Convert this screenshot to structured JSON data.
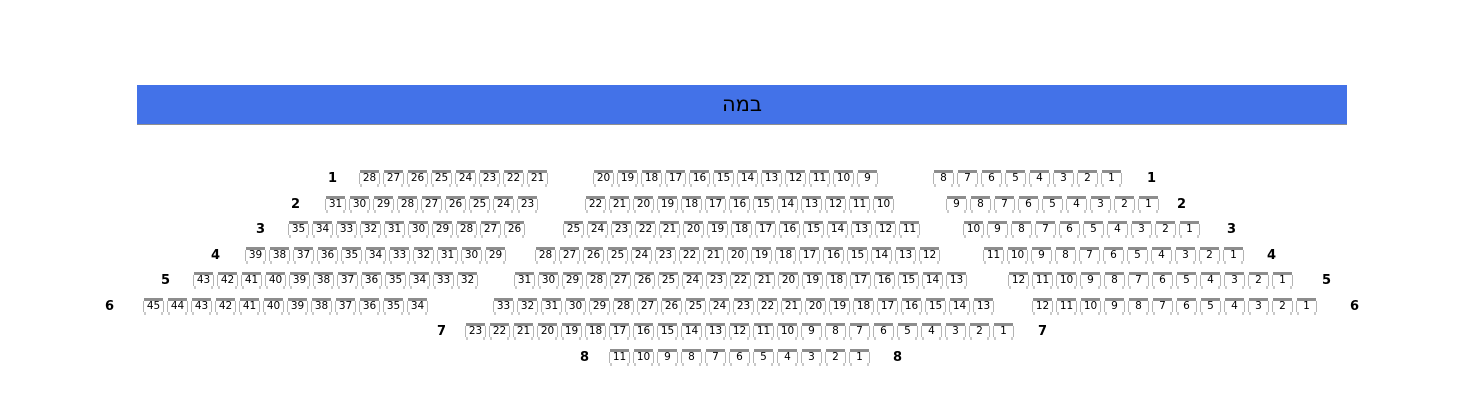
{
  "stage": {
    "label": "במה",
    "color": "#4372e8"
  },
  "rows": [
    {
      "label": "1",
      "groups": [
        [
          28,
          27,
          26,
          25,
          24,
          23,
          22,
          21
        ],
        [
          20,
          19,
          18,
          17,
          16,
          15,
          14,
          13,
          12,
          11,
          10,
          9
        ],
        [
          8,
          7,
          6,
          5,
          4,
          3,
          2,
          1
        ]
      ]
    },
    {
      "label": "2",
      "groups": [
        [
          31,
          30,
          29,
          28,
          27,
          26,
          25,
          24,
          23
        ],
        [
          22,
          21,
          20,
          19,
          18,
          17,
          16,
          15,
          14,
          13,
          12,
          11,
          10
        ],
        [
          9,
          8,
          7,
          6,
          5,
          4,
          3,
          2,
          1
        ]
      ]
    },
    {
      "label": "3",
      "groups": [
        [
          35,
          34,
          33,
          32,
          31,
          30,
          29,
          28,
          27,
          26
        ],
        [
          25,
          24,
          23,
          22,
          21,
          20,
          19,
          18,
          17,
          16,
          15,
          14,
          13,
          12,
          11
        ],
        [
          10,
          9,
          8,
          7,
          6,
          5,
          4,
          3,
          2,
          1
        ]
      ]
    },
    {
      "label": "4",
      "groups": [
        [
          39,
          38,
          37,
          36,
          35,
          34,
          33,
          32,
          31,
          30,
          29
        ],
        [
          28,
          27,
          26,
          25,
          24,
          23,
          22,
          21,
          20,
          19,
          18,
          17,
          16,
          15,
          14,
          13,
          12
        ],
        [
          11,
          10,
          9,
          8,
          7,
          6,
          5,
          4,
          3,
          2,
          1
        ]
      ]
    },
    {
      "label": "5",
      "groups": [
        [
          43,
          42,
          41,
          40,
          39,
          38,
          37,
          36,
          35,
          34,
          33,
          32
        ],
        [
          31,
          30,
          29,
          28,
          27,
          26,
          25,
          24,
          23,
          22,
          21,
          20,
          19,
          18,
          17,
          16,
          15,
          14,
          13
        ],
        [
          12,
          11,
          10,
          9,
          8,
          7,
          6,
          5,
          4,
          3,
          2,
          1
        ]
      ]
    },
    {
      "label": "6",
      "groups": [
        [
          45,
          44,
          43,
          42,
          41,
          40,
          39,
          38,
          37,
          36,
          35,
          34
        ],
        [
          33,
          32,
          31,
          30,
          29,
          28,
          27,
          26,
          25,
          24,
          23,
          22,
          21,
          20,
          19,
          18,
          17,
          16,
          15,
          14,
          13
        ],
        [
          12,
          11,
          10,
          9,
          8,
          7,
          6,
          5,
          4,
          3,
          2,
          1
        ]
      ]
    },
    {
      "label": "7",
      "groups": [
        [
          23,
          22,
          21,
          20,
          19,
          18,
          17,
          16,
          15,
          14,
          13,
          12,
          11,
          10,
          9,
          8,
          7,
          6,
          5,
          4,
          3,
          2,
          1
        ]
      ]
    },
    {
      "label": "8",
      "groups": [
        [
          11,
          10,
          9,
          8,
          7,
          6,
          5,
          4,
          3,
          2,
          1
        ]
      ]
    }
  ]
}
